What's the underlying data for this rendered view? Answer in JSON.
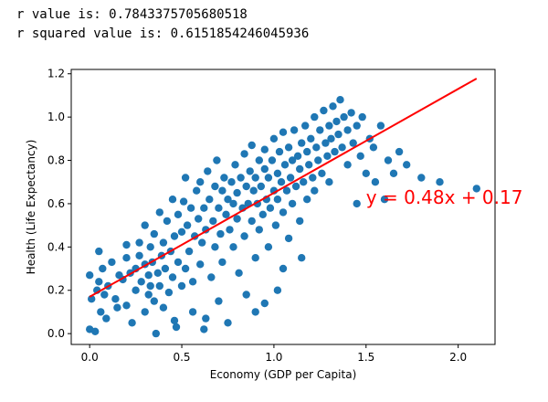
{
  "output": {
    "r_line": "r value is: 0.7843375705680518",
    "r2_line": "r squared value is: 0.6151854246045936"
  },
  "chart_data": {
    "type": "scatter",
    "title": "",
    "xlabel": "Economy (GDP per Capita)",
    "ylabel": "Health (Life Expectancy)",
    "xlim": [
      -0.1,
      2.2
    ],
    "ylim": [
      -0.05,
      1.22
    ],
    "xticks": [
      0.0,
      0.5,
      1.0,
      1.5,
      2.0
    ],
    "xtick_labels": [
      "0.0",
      "0.5",
      "1.0",
      "1.5",
      "2.0"
    ],
    "yticks": [
      0.0,
      0.2,
      0.4,
      0.6,
      0.8,
      1.0,
      1.2
    ],
    "ytick_labels": [
      "0.0",
      "0.2",
      "0.4",
      "0.6",
      "0.8",
      "1.0",
      "1.2"
    ],
    "grid": false,
    "point_color": "#1f77b4",
    "line_color": "#ff0000",
    "regression": {
      "slope": 0.48,
      "intercept": 0.17,
      "x_start": 0.0,
      "x_end": 2.1,
      "equation": "y = 0.48x + 0.17"
    },
    "points": [
      [
        0.0,
        0.27
      ],
      [
        0.0,
        0.02
      ],
      [
        0.01,
        0.16
      ],
      [
        0.03,
        0.01
      ],
      [
        0.04,
        0.2
      ],
      [
        0.05,
        0.38
      ],
      [
        0.05,
        0.24
      ],
      [
        0.06,
        0.1
      ],
      [
        0.07,
        0.3
      ],
      [
        0.08,
        0.18
      ],
      [
        0.09,
        0.07
      ],
      [
        0.1,
        0.22
      ],
      [
        0.12,
        0.33
      ],
      [
        0.14,
        0.16
      ],
      [
        0.16,
        0.27
      ],
      [
        0.18,
        0.25
      ],
      [
        0.2,
        0.35
      ],
      [
        0.2,
        0.13
      ],
      [
        0.22,
        0.28
      ],
      [
        0.23,
        0.05
      ],
      [
        0.25,
        0.3
      ],
      [
        0.25,
        0.2
      ],
      [
        0.27,
        0.36
      ],
      [
        0.27,
        0.42
      ],
      [
        0.28,
        0.24
      ],
      [
        0.3,
        0.1
      ],
      [
        0.3,
        0.32
      ],
      [
        0.3,
        0.5
      ],
      [
        0.32,
        0.18
      ],
      [
        0.32,
        0.27
      ],
      [
        0.33,
        0.4
      ],
      [
        0.33,
        0.22
      ],
      [
        0.34,
        0.33
      ],
      [
        0.35,
        0.15
      ],
      [
        0.35,
        0.46
      ],
      [
        0.36,
        0.0
      ],
      [
        0.37,
        0.28
      ],
      [
        0.38,
        0.56
      ],
      [
        0.38,
        0.22
      ],
      [
        0.39,
        0.36
      ],
      [
        0.4,
        0.12
      ],
      [
        0.4,
        0.42
      ],
      [
        0.41,
        0.3
      ],
      [
        0.42,
        0.52
      ],
      [
        0.43,
        0.19
      ],
      [
        0.44,
        0.38
      ],
      [
        0.45,
        0.26
      ],
      [
        0.45,
        0.62
      ],
      [
        0.46,
        0.45
      ],
      [
        0.47,
        0.03
      ],
      [
        0.48,
        0.33
      ],
      [
        0.48,
        0.55
      ],
      [
        0.5,
        0.22
      ],
      [
        0.5,
        0.47
      ],
      [
        0.51,
        0.61
      ],
      [
        0.52,
        0.3
      ],
      [
        0.52,
        0.72
      ],
      [
        0.53,
        0.5
      ],
      [
        0.54,
        0.38
      ],
      [
        0.55,
        0.58
      ],
      [
        0.56,
        0.1
      ],
      [
        0.56,
        0.24
      ],
      [
        0.57,
        0.45
      ],
      [
        0.58,
        0.66
      ],
      [
        0.59,
        0.53
      ],
      [
        0.6,
        0.7
      ],
      [
        0.6,
        0.32
      ],
      [
        0.61,
        0.42
      ],
      [
        0.62,
        0.58
      ],
      [
        0.63,
        0.07
      ],
      [
        0.63,
        0.48
      ],
      [
        0.64,
        0.75
      ],
      [
        0.65,
        0.62
      ],
      [
        0.66,
        0.26
      ],
      [
        0.67,
        0.52
      ],
      [
        0.68,
        0.68
      ],
      [
        0.68,
        0.4
      ],
      [
        0.69,
        0.8
      ],
      [
        0.7,
        0.58
      ],
      [
        0.7,
        0.15
      ],
      [
        0.71,
        0.46
      ],
      [
        0.72,
        0.66
      ],
      [
        0.72,
        0.33
      ],
      [
        0.73,
        0.72
      ],
      [
        0.74,
        0.55
      ],
      [
        0.75,
        0.62
      ],
      [
        0.75,
        0.05
      ],
      [
        0.76,
        0.48
      ],
      [
        0.77,
        0.7
      ],
      [
        0.78,
        0.4
      ],
      [
        0.78,
        0.6
      ],
      [
        0.79,
        0.78
      ],
      [
        0.8,
        0.53
      ],
      [
        0.8,
        0.65
      ],
      [
        0.81,
        0.28
      ],
      [
        0.82,
        0.72
      ],
      [
        0.83,
        0.58
      ],
      [
        0.84,
        0.83
      ],
      [
        0.84,
        0.45
      ],
      [
        0.85,
        0.68
      ],
      [
        0.85,
        0.18
      ],
      [
        0.86,
        0.6
      ],
      [
        0.87,
        0.75
      ],
      [
        0.88,
        0.52
      ],
      [
        0.88,
        0.87
      ],
      [
        0.89,
        0.66
      ],
      [
        0.9,
        0.35
      ],
      [
        0.9,
        0.72
      ],
      [
        0.91,
        0.6
      ],
      [
        0.92,
        0.8
      ],
      [
        0.92,
        0.48
      ],
      [
        0.93,
        0.68
      ],
      [
        0.94,
        0.55
      ],
      [
        0.95,
        0.76
      ],
      [
        0.95,
        0.85
      ],
      [
        0.96,
        0.62
      ],
      [
        0.97,
        0.4
      ],
      [
        0.97,
        0.72
      ],
      [
        0.98,
        0.58
      ],
      [
        0.99,
        0.8
      ],
      [
        1.0,
        0.66
      ],
      [
        1.0,
        0.9
      ],
      [
        1.01,
        0.5
      ],
      [
        1.02,
        0.74
      ],
      [
        1.02,
        0.62
      ],
      [
        1.03,
        0.84
      ],
      [
        1.04,
        0.7
      ],
      [
        1.05,
        0.56
      ],
      [
        1.05,
        0.93
      ],
      [
        1.06,
        0.78
      ],
      [
        1.07,
        0.66
      ],
      [
        1.08,
        0.86
      ],
      [
        1.08,
        0.44
      ],
      [
        1.09,
        0.72
      ],
      [
        1.1,
        0.8
      ],
      [
        1.1,
        0.6
      ],
      [
        1.11,
        0.94
      ],
      [
        1.12,
        0.68
      ],
      [
        1.13,
        0.82
      ],
      [
        1.14,
        0.52
      ],
      [
        1.14,
        0.76
      ],
      [
        1.15,
        0.88
      ],
      [
        1.16,
        0.7
      ],
      [
        1.17,
        0.96
      ],
      [
        1.18,
        0.62
      ],
      [
        1.18,
        0.84
      ],
      [
        1.19,
        0.78
      ],
      [
        1.2,
        0.9
      ],
      [
        1.21,
        0.72
      ],
      [
        1.22,
        1.0
      ],
      [
        1.22,
        0.66
      ],
      [
        1.23,
        0.86
      ],
      [
        1.24,
        0.8
      ],
      [
        1.25,
        0.94
      ],
      [
        1.26,
        0.74
      ],
      [
        1.27,
        1.03
      ],
      [
        1.28,
        0.88
      ],
      [
        1.29,
        0.82
      ],
      [
        1.3,
        0.96
      ],
      [
        1.3,
        0.7
      ],
      [
        1.31,
        0.9
      ],
      [
        1.32,
        1.05
      ],
      [
        1.33,
        0.84
      ],
      [
        1.34,
        0.98
      ],
      [
        1.35,
        0.92
      ],
      [
        1.36,
        1.08
      ],
      [
        1.37,
        0.86
      ],
      [
        1.38,
        1.0
      ],
      [
        1.4,
        0.94
      ],
      [
        1.4,
        0.78
      ],
      [
        1.42,
        1.02
      ],
      [
        1.43,
        0.88
      ],
      [
        1.45,
        0.96
      ],
      [
        1.47,
        0.82
      ],
      [
        1.48,
        1.0
      ],
      [
        1.5,
        0.74
      ],
      [
        1.52,
        0.9
      ],
      [
        1.54,
        0.86
      ],
      [
        1.55,
        0.7
      ],
      [
        1.58,
        0.96
      ],
      [
        1.6,
        0.62
      ],
      [
        1.62,
        0.8
      ],
      [
        1.65,
        0.74
      ],
      [
        1.68,
        0.84
      ],
      [
        1.72,
        0.78
      ],
      [
        1.8,
        0.72
      ],
      [
        1.9,
        0.7
      ],
      [
        2.1,
        0.67
      ],
      [
        1.02,
        0.2
      ],
      [
        0.95,
        0.14
      ],
      [
        1.05,
        0.3
      ],
      [
        0.2,
        0.41
      ],
      [
        0.15,
        0.12
      ],
      [
        0.46,
        0.06
      ],
      [
        0.62,
        0.02
      ],
      [
        1.45,
        0.6
      ],
      [
        0.9,
        0.1
      ],
      [
        1.15,
        0.35
      ]
    ]
  }
}
